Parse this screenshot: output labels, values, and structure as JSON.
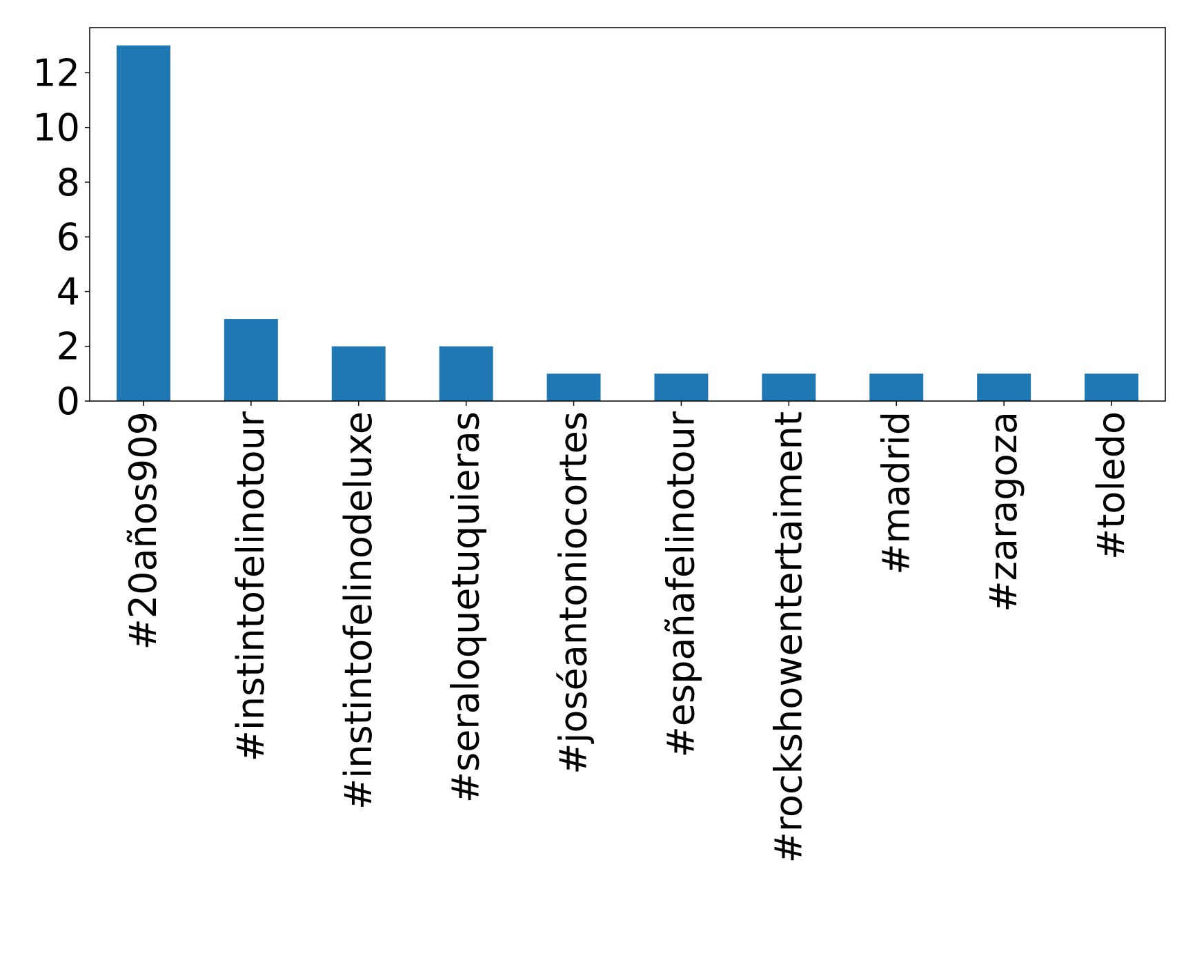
{
  "chart_data": {
    "type": "bar",
    "title": "",
    "xlabel": "",
    "ylabel": "",
    "categories": [
      "#20años909",
      "#instintofelinotour",
      "#instintofelinodeluxe",
      "#seraloquetuquieras",
      "#joséantoniocortes",
      "#españafelinotour",
      "#rockshowentertaiment",
      "#madrid",
      "#zaragoza",
      "#toledo"
    ],
    "values": [
      13,
      3,
      2,
      2,
      1,
      1,
      1,
      1,
      1,
      1
    ],
    "ylim": [
      0,
      13.65
    ],
    "yticks": [
      "0",
      "2",
      "4",
      "6",
      "8",
      "10",
      "12"
    ],
    "bar_color": "#1f77b4",
    "grid": false,
    "legend": "none"
  }
}
